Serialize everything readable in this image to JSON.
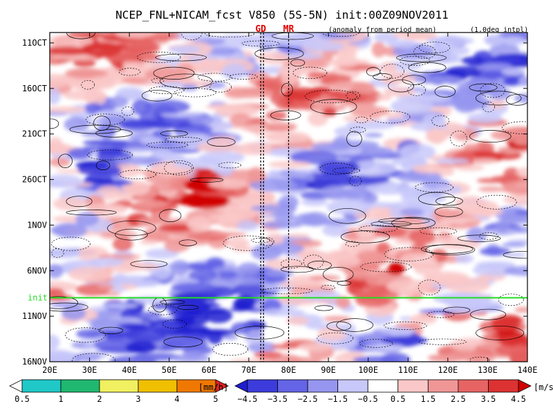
{
  "chart_data": {
    "type": "heatmap",
    "title": "NCEP_FNL+NICAM_fcst V850 (5S-5N) init:00Z09NOV2011",
    "subtitle_left": "(anomaly from period mean)",
    "subtitle_right": "(1.0deg intpl)",
    "markers": [
      {
        "label": "GD",
        "lon": 73
      },
      {
        "label": "MR",
        "lon": 80
      }
    ],
    "init_label": "init",
    "init_date_offset": 8.5,
    "xlabels": [
      "20E",
      "30E",
      "40E",
      "50E",
      "60E",
      "70E",
      "80E",
      "90E",
      "100E",
      "110E",
      "120E",
      "130E",
      "140E"
    ],
    "xlim": [
      20,
      140
    ],
    "ylabels": [
      "11OCT",
      "16OCT",
      "21OCT",
      "26OCT",
      "1NOV",
      "6NOV",
      "11NOV",
      "16NOV"
    ],
    "ylim_days": [
      0,
      36
    ],
    "rain_colorbar": {
      "unit": "[mm/h]",
      "ticks": [
        "0.5",
        "1",
        "2",
        "3",
        "4",
        "5"
      ],
      "colors": [
        "#ffffff",
        "#20c8c8",
        "#20b870",
        "#f0f060",
        "#f0c000",
        "#f07800",
        "#e02020"
      ]
    },
    "wind_colorbar": {
      "unit": "[m/s]",
      "ticks": [
        "−4.5",
        "−3.5",
        "−2.5",
        "−1.5",
        "−0.5",
        "0.5",
        "1.5",
        "2.5",
        "3.5",
        "4.5"
      ],
      "colors": [
        "#1e1ed0",
        "#3c3cdc",
        "#6464e6",
        "#9696f0",
        "#c8c8fa",
        "#ffffff",
        "#fac8c8",
        "#f09696",
        "#e66464",
        "#dc3232",
        "#d00000"
      ]
    }
  }
}
